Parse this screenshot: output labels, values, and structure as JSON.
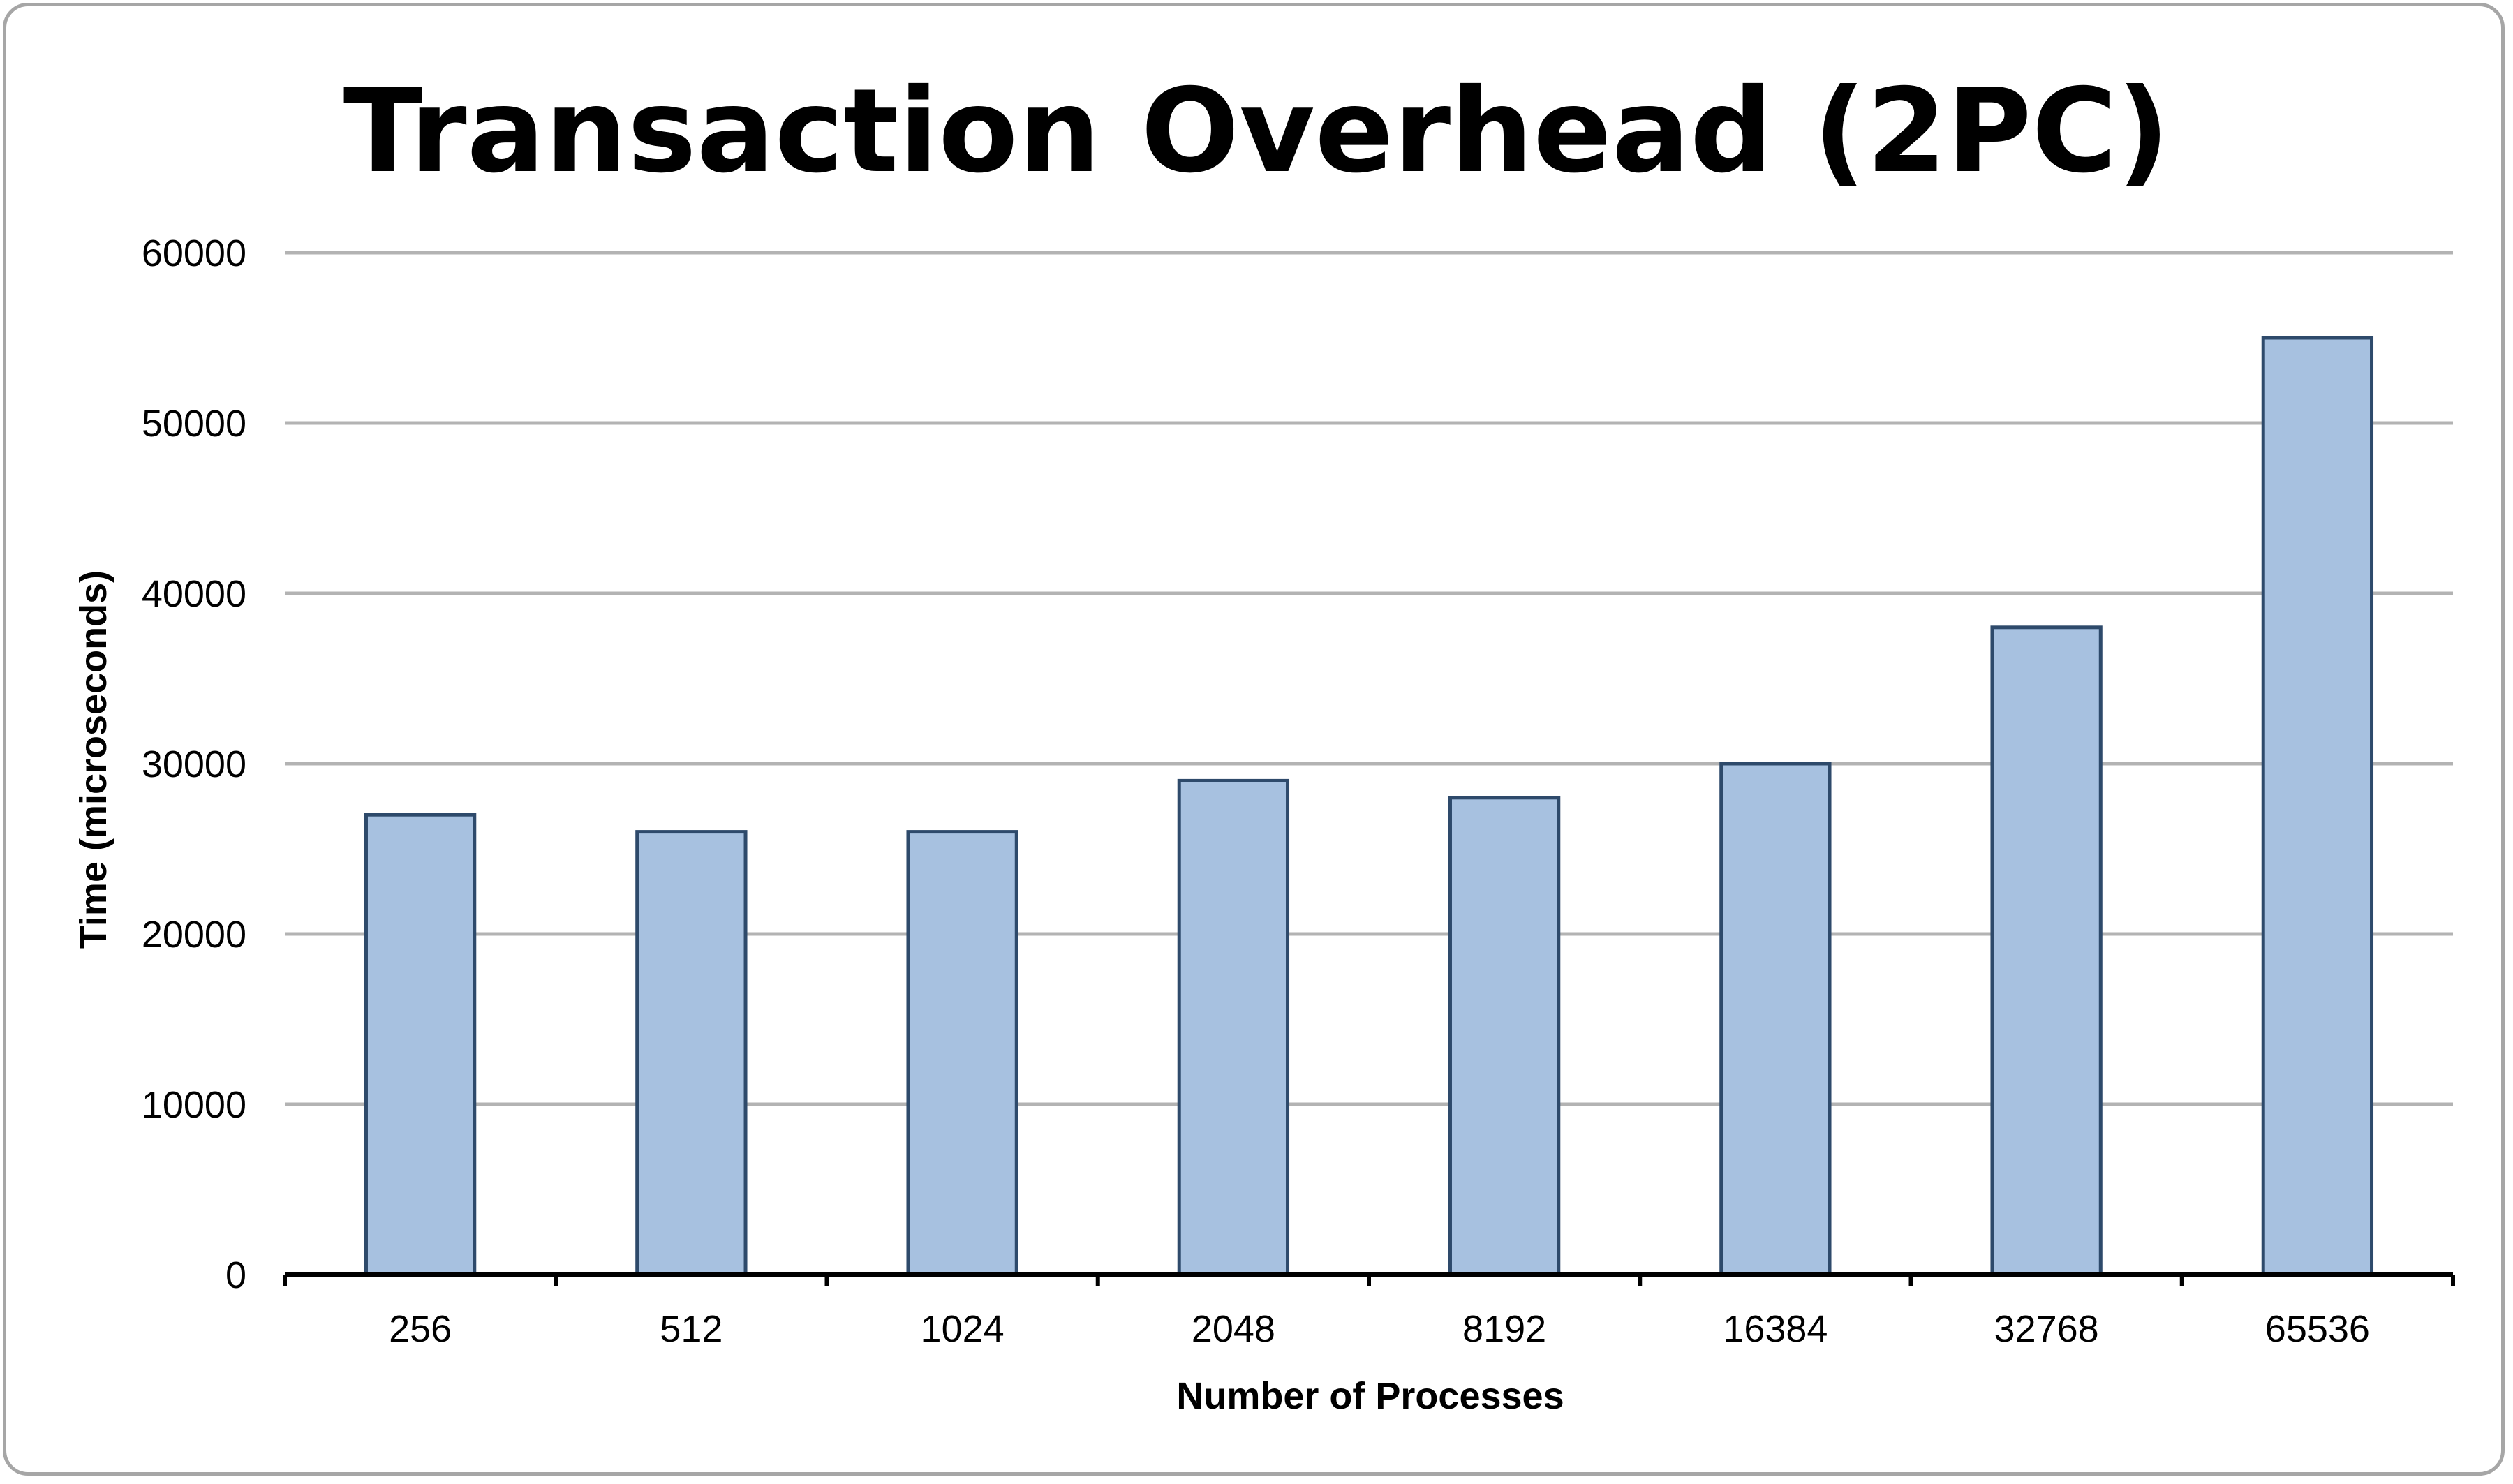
{
  "chart_data": {
    "type": "bar",
    "title": "Transaction Overhead (2PC)",
    "xlabel": "Number of Processes",
    "ylabel": "Time (microseconds)",
    "categories": [
      "256",
      "512",
      "1024",
      "2048",
      "8192",
      "16384",
      "32768",
      "65536"
    ],
    "values": [
      27000,
      26000,
      26000,
      29000,
      28000,
      30000,
      38000,
      55000
    ],
    "ylim": [
      0,
      60000
    ],
    "yticks": [
      0,
      10000,
      20000,
      30000,
      40000,
      50000,
      60000
    ],
    "grid": true,
    "legend": "none",
    "bar_fill": "#a7c1e0",
    "bar_stroke": "#2e4a6b",
    "grid_color": "#b3b3b3",
    "axis_color": "#000000"
  }
}
